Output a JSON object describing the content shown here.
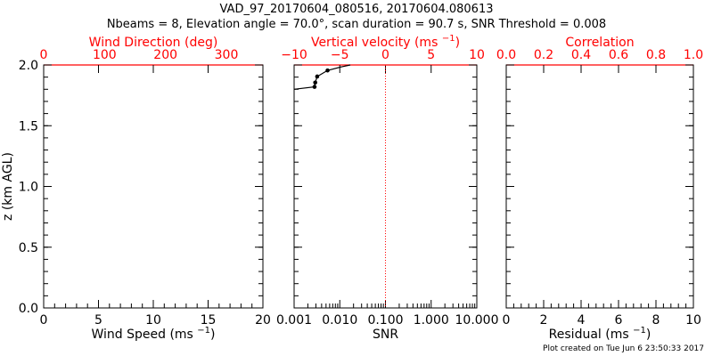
{
  "header": {
    "title_line1": "VAD_97_20170604_080516, 20170604.080613",
    "title_line2": "Nbeams = 8, Elevation angle = 70.0°, scan duration = 90.7 s, SNR Threshold = 0.008"
  },
  "footer": {
    "created": "Plot created on Tue Jun  6 23:50:33 2017"
  },
  "colors": {
    "axis": "#000000",
    "top_axis": "#ff0000",
    "reference_line": "#ff0000",
    "series": "#000000"
  },
  "chart_data": [
    {
      "id": "wind",
      "type": "line",
      "ylabel": "z (km AGL)",
      "ylim": [
        0.0,
        2.0
      ],
      "yticks": [
        "0.0",
        "0.5",
        "1.0",
        "1.5",
        "2.0"
      ],
      "bottom_axis": {
        "label": "Wind Speed",
        "unit": "(ms",
        "sup": "−1",
        "close": ")",
        "range": [
          0,
          20
        ],
        "ticks": [
          "0",
          "5",
          "10",
          "15",
          "20"
        ]
      },
      "top_axis": {
        "label": "Wind Direction (deg)",
        "range": [
          0,
          360
        ],
        "ticks": [
          "0",
          "100",
          "200",
          "300"
        ]
      },
      "series": []
    },
    {
      "id": "snr",
      "type": "line",
      "bottom_axis": {
        "label": "SNR",
        "scale": "log",
        "range": [
          0.001,
          10.0
        ],
        "ticks": [
          "0.001",
          "0.010",
          "0.100",
          "1.000",
          "10.000"
        ]
      },
      "top_axis": {
        "label": "Vertical velocity (ms",
        "sup": "−1",
        "close": ")",
        "range": [
          -10,
          10
        ],
        "ticks": [
          "−10",
          "−5",
          "0",
          "5",
          "10"
        ]
      },
      "reference_line": {
        "axis": "SNR",
        "value": 0.1,
        "style": "dotted"
      },
      "series": [
        {
          "name": "SNR profile",
          "points": [
            [
              0.001,
              1.8
            ],
            [
              0.0028,
              1.82
            ],
            [
              0.0029,
              1.855
            ],
            [
              0.0032,
              1.905
            ],
            [
              0.0054,
              1.955
            ],
            [
              0.011,
              1.985
            ],
            [
              0.017,
              2.0
            ]
          ],
          "markers_at": [
            1,
            2,
            3,
            4
          ]
        }
      ]
    },
    {
      "id": "corr",
      "type": "line",
      "bottom_axis": {
        "label": "Residual",
        "unit": "(ms",
        "sup": "−1",
        "close": ")",
        "range": [
          0,
          10
        ],
        "ticks": [
          "0",
          "2",
          "4",
          "6",
          "8",
          "10"
        ]
      },
      "top_axis": {
        "label": "Correlation",
        "range": [
          0.0,
          1.0
        ],
        "ticks": [
          "0.0",
          "0.2",
          "0.4",
          "0.6",
          "0.8",
          "1.0"
        ]
      },
      "series": []
    }
  ]
}
